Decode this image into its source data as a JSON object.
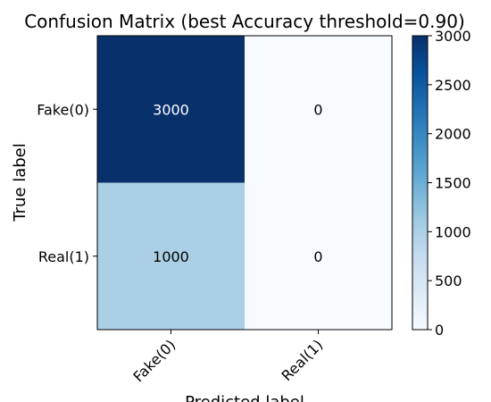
{
  "chart_data": {
    "type": "heatmap",
    "title": "Confusion Matrix (best Accuracy threshold=0.90)",
    "xlabel": "Predicted label",
    "ylabel": "True label",
    "x_categories": [
      "Fake(0)",
      "Real(1)"
    ],
    "y_categories": [
      "Fake(0)",
      "Real(1)"
    ],
    "values": [
      [
        3000,
        0
      ],
      [
        1000,
        0
      ]
    ],
    "colormap": "Blues",
    "colors": {
      "low": "#f7fbff",
      "high": "#08306b"
    },
    "colorbar": {
      "range": [
        0,
        3000
      ],
      "ticks": [
        0,
        500,
        1000,
        1500,
        2000,
        2500,
        3000
      ]
    }
  }
}
